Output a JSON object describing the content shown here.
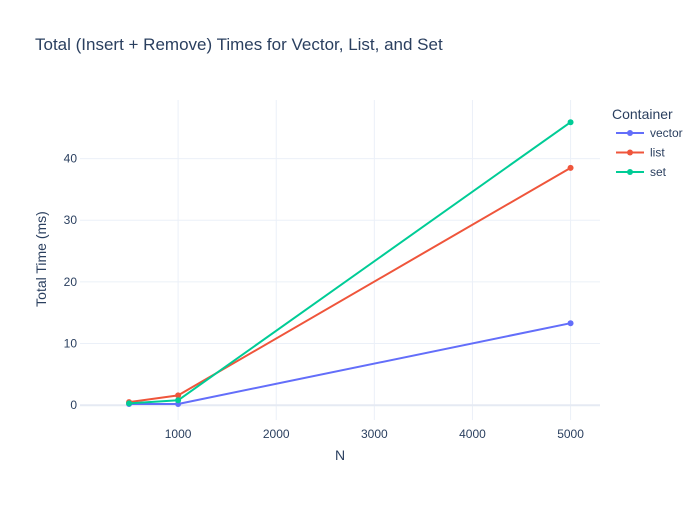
{
  "chart_data": {
    "type": "line",
    "title": "Total (Insert + Remove) Times for Vector, List, and Set",
    "xlabel": "N",
    "ylabel": "Total Time (ms)",
    "x": [
      500,
      1000,
      5000
    ],
    "xlim": [
      0,
      5300
    ],
    "ylim": [
      -2.4,
      49.5
    ],
    "xticks": [
      1000,
      2000,
      3000,
      4000,
      5000
    ],
    "yticks": [
      0,
      10,
      20,
      30,
      40
    ],
    "grid": true,
    "legend": {
      "title": "Container",
      "placement": "top-right"
    },
    "series": [
      {
        "name": "vector",
        "values": [
          0.2,
          0.2,
          13.3
        ],
        "color": "#636efa"
      },
      {
        "name": "list",
        "values": [
          0.5,
          1.6,
          38.5
        ],
        "color": "#EF553B"
      },
      {
        "name": "set",
        "values": [
          0.3,
          0.8,
          45.9
        ],
        "color": "#00cc96"
      }
    ],
    "colors": {
      "text": "#2a3f5f",
      "grid": "#ebf0f8",
      "background": "#ffffff"
    }
  }
}
